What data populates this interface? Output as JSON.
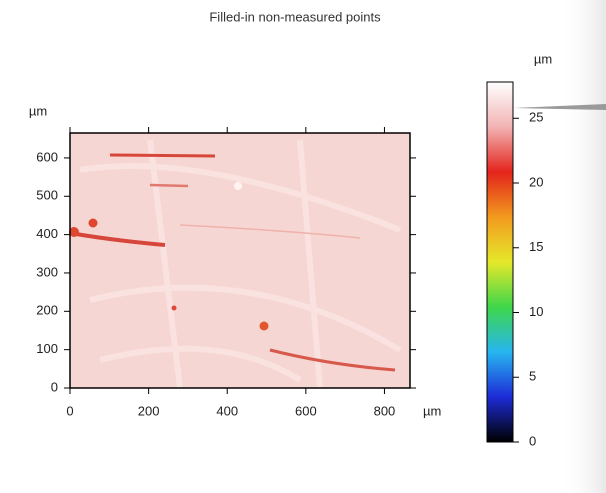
{
  "chart_data": {
    "type": "heatmap",
    "title": "Filled-in non-measured points",
    "x_unit": "µm",
    "y_unit": "µm",
    "colorbar_unit": "µm",
    "xlim": [
      0,
      865
    ],
    "xticks": [
      0,
      200,
      400,
      600,
      800
    ],
    "ylim": [
      0,
      665
    ],
    "yticks": [
      0,
      100,
      200,
      300,
      400,
      500,
      600
    ],
    "zlim": [
      0,
      27.8
    ],
    "zticks": [
      0,
      5,
      10,
      15,
      20,
      25
    ],
    "colormap": [
      "#000000",
      "#1d2bd6",
      "#27b6f0",
      "#3fd64a",
      "#e6e82a",
      "#f29a1e",
      "#e3241c",
      "#f2b3b3",
      "#ffffff"
    ]
  }
}
